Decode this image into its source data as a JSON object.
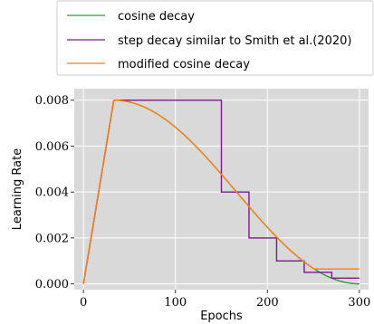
{
  "chart_data": {
    "type": "line",
    "xlabel": "Epochs",
    "ylabel": "Learning Rate",
    "xlim": [
      -10,
      310
    ],
    "ylim": [
      -0.00025,
      0.0085
    ],
    "xticks": [
      0,
      100,
      200,
      300
    ],
    "xtick_labels": [
      "0",
      "100",
      "200",
      "300"
    ],
    "yticks": [
      0.0,
      0.002,
      0.004,
      0.006,
      0.008
    ],
    "ytick_labels": [
      "0.000",
      "0.002",
      "0.004",
      "0.006",
      "0.008"
    ],
    "grid": true,
    "legend_position": "top-center, outside plot",
    "background": "#d9d9d9",
    "series": [
      {
        "name": "cosine decay",
        "color": "#2ca02c",
        "warmup": {
          "start_epoch": 0,
          "end_epoch": 33,
          "start_value": 0.0,
          "peak_value": 0.008
        },
        "decay": {
          "kind": "cosine",
          "start_epoch": 33,
          "end_epoch": 300,
          "min_value": 0.0
        }
      },
      {
        "name": "step decay similar to Smith et al.(2020)",
        "color": "#7b1a8c",
        "x": [
          0,
          33,
          150,
          150,
          180,
          180,
          210,
          210,
          240,
          240,
          270,
          270,
          300
        ],
        "y": [
          0.0,
          0.008,
          0.008,
          0.004,
          0.004,
          0.002,
          0.002,
          0.001,
          0.001,
          0.0005,
          0.0005,
          0.00025,
          0.00025
        ]
      },
      {
        "name": "modified cosine decay",
        "color": "#ff7f0e",
        "warmup": {
          "start_epoch": 0,
          "end_epoch": 33,
          "start_value": 0.0,
          "peak_value": 0.008
        },
        "decay": {
          "kind": "cosine",
          "start_epoch": 33,
          "end_epoch": 300,
          "min_value": 0.0,
          "floor_value": 0.00065
        }
      }
    ]
  }
}
